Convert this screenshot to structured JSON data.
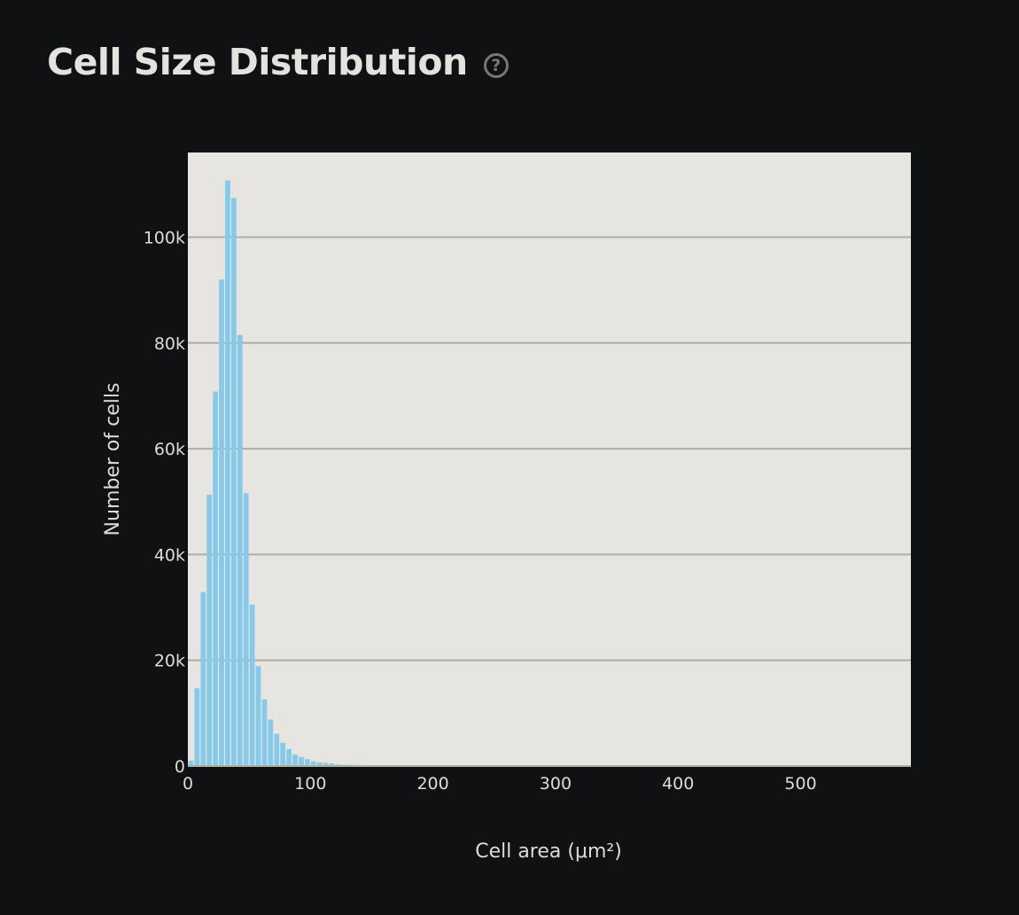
{
  "header": {
    "title": "Cell Size Distribution",
    "help_icon": "question-circle-icon"
  },
  "colors": {
    "background": "#101113",
    "plot_background": "#e6e5e1",
    "bar": "#86c9e9",
    "gridline": "#aeada6",
    "text": "#dedcd6"
  },
  "chart_data": {
    "type": "bar",
    "title": "",
    "xlabel": "Cell area (μm²)",
    "ylabel": "Number of cells",
    "xlim": [
      0,
      590
    ],
    "ylim": [
      0,
      116000
    ],
    "x_ticks": [
      0,
      100,
      200,
      300,
      400,
      500
    ],
    "x_tick_labels": [
      "0",
      "100",
      "200",
      "300",
      "400",
      "500"
    ],
    "y_ticks": [
      0,
      20000,
      40000,
      60000,
      80000,
      100000
    ],
    "y_tick_labels": [
      "0",
      "20k",
      "40k",
      "60k",
      "80k",
      "100k"
    ],
    "grid": "horizontal",
    "bin_width": 5,
    "bin_starts": [
      0,
      5,
      10,
      15,
      20,
      25,
      30,
      35,
      40,
      45,
      50,
      55,
      60,
      65,
      70,
      75,
      80,
      85,
      90,
      95,
      100,
      105,
      110,
      115,
      120,
      125,
      130,
      135,
      140,
      145,
      150,
      155,
      160,
      165,
      170,
      175,
      180,
      185,
      190,
      195,
      200,
      205,
      210,
      215,
      220,
      225,
      230,
      235,
      240,
      245,
      250,
      255,
      260,
      265,
      270,
      275,
      280
    ],
    "values": [
      1000,
      14700,
      32900,
      51300,
      70800,
      92000,
      110700,
      107400,
      81500,
      51600,
      30500,
      18900,
      12600,
      8800,
      6100,
      4400,
      3200,
      2200,
      1700,
      1300,
      900,
      700,
      600,
      500,
      300,
      250,
      220,
      200,
      180,
      160,
      150,
      140,
      130,
      120,
      110,
      100,
      100,
      90,
      90,
      80,
      80,
      70,
      70,
      60,
      60,
      60,
      50,
      50,
      50,
      40,
      40,
      40,
      40,
      30,
      30,
      30,
      30
    ]
  }
}
